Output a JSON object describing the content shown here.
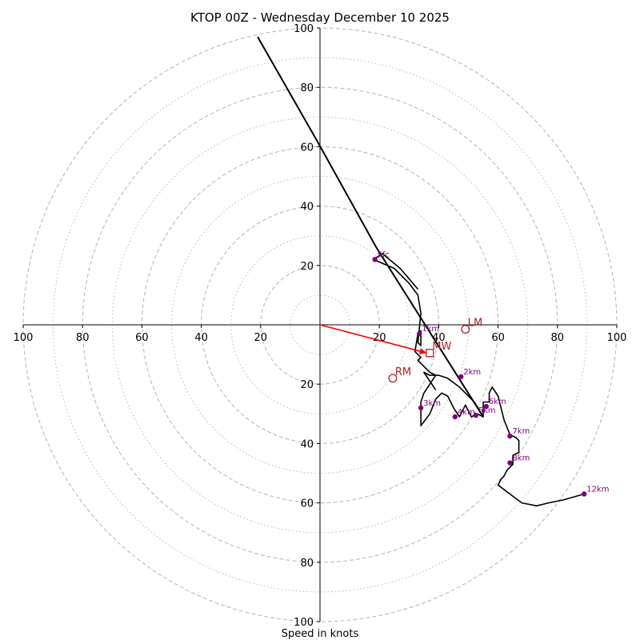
{
  "chart_data": {
    "type": "line",
    "title": "KTOP 00Z - Wednesday December 10 2025",
    "xlabel": "Speed in knots",
    "ylabel": "",
    "subtype": "hodograph",
    "xlim": [
      -100,
      100
    ],
    "ylim": [
      -100,
      100
    ],
    "major_rings": [
      10,
      20,
      30,
      40,
      50,
      60,
      70,
      80,
      90,
      100
    ],
    "ring_label_ticks": [
      20,
      40,
      60,
      80,
      100
    ],
    "x_tick_labels": [
      "100",
      "80",
      "60",
      "40",
      "20",
      "20",
      "40",
      "60",
      "80",
      "100"
    ],
    "y_tick_labels_top": [
      "20",
      "40",
      "60",
      "80",
      "100"
    ],
    "y_tick_labels_bottom": [
      "20",
      "40",
      "60",
      "80",
      "100"
    ],
    "colors": {
      "trace": "#000000",
      "height_markers": "#800080",
      "motion": "#b22222",
      "mean_wind_vector": "#ff0000",
      "rings": "#bbbbbb"
    },
    "series": [
      {
        "name": "hodograph",
        "points": [
          [
            33,
            12
          ],
          [
            27,
            19
          ],
          [
            21,
            24
          ],
          [
            18,
            22
          ],
          [
            25,
            19
          ],
          [
            30,
            14
          ],
          [
            33,
            10
          ],
          [
            34,
            4
          ],
          [
            33,
            -6
          ],
          [
            34,
            -7
          ],
          [
            34,
            -2
          ],
          [
            33,
            -3
          ],
          [
            32,
            -9
          ],
          [
            34,
            -11
          ],
          [
            33,
            -12
          ],
          [
            34,
            -13
          ],
          [
            37,
            -16
          ],
          [
            39,
            -17
          ],
          [
            37,
            -20
          ],
          [
            35,
            -23
          ],
          [
            34,
            -26
          ],
          [
            34,
            -28
          ],
          [
            34,
            -30
          ],
          [
            34,
            -34
          ],
          [
            37,
            -30
          ],
          [
            39,
            -25
          ],
          [
            41,
            -23
          ],
          [
            43,
            -24
          ],
          [
            45,
            -28
          ],
          [
            47,
            -31
          ],
          [
            49,
            -27
          ],
          [
            51,
            -31
          ],
          [
            53,
            -30
          ],
          [
            55,
            -31
          ],
          [
            55,
            -26
          ],
          [
            57,
            -26
          ],
          [
            57,
            -23
          ],
          [
            58,
            -21
          ],
          [
            60,
            -24
          ],
          [
            61,
            -28
          ],
          [
            62,
            -32
          ],
          [
            64,
            -37
          ],
          [
            66,
            -38
          ],
          [
            67,
            -39
          ],
          [
            67,
            -43
          ],
          [
            65,
            -44
          ],
          [
            65,
            -47
          ],
          [
            63,
            -49
          ],
          [
            62,
            -51
          ],
          [
            61,
            -52
          ],
          [
            60,
            -54
          ],
          [
            64,
            -57
          ],
          [
            68,
            -60
          ],
          [
            73,
            -61
          ],
          [
            77,
            -60
          ],
          [
            82,
            -59
          ],
          [
            89,
            -57
          ]
        ],
        "background_points": [
          [
            39,
            -22
          ],
          [
            35,
            -16
          ],
          [
            37,
            -17
          ],
          [
            40,
            -17
          ],
          [
            43,
            -18
          ],
          [
            47,
            -21
          ],
          [
            52,
            -26
          ],
          [
            55,
            -31
          ]
        ]
      },
      {
        "name": "storm-wind-line",
        "points": [
          [
            -21,
            97
          ],
          [
            -1,
            62
          ],
          [
            19,
            26
          ],
          [
            55,
            -31
          ]
        ]
      }
    ],
    "height_markers": [
      {
        "label": "Sfc",
        "u": 18.5,
        "v": 22
      },
      {
        "label": "1km",
        "u": 33.5,
        "v": -3
      },
      {
        "label": "2km",
        "u": 47.5,
        "v": -17.5
      },
      {
        "label": "3km",
        "u": 34,
        "v": -28
      },
      {
        "label": "4km",
        "u": 45.5,
        "v": -31
      },
      {
        "label": "5km",
        "u": 52.5,
        "v": -30.5
      },
      {
        "label": "6km",
        "u": 56,
        "v": -27.5
      },
      {
        "label": "7km",
        "u": 64,
        "v": -37.5
      },
      {
        "label": "8km",
        "u": 64,
        "v": -46.5
      },
      {
        "label": "12km",
        "u": 89,
        "v": -57
      }
    ],
    "storm_motions": [
      {
        "label": "LM",
        "u": 49,
        "v": -1.5,
        "marker": "circle"
      },
      {
        "label": "RM",
        "u": 24.5,
        "v": -18,
        "marker": "circle"
      },
      {
        "label": "MW",
        "u": 37,
        "v": -9.5,
        "marker": "square"
      }
    ],
    "mean_wind_vector": {
      "from": [
        0,
        0
      ],
      "to": [
        36,
        -9.5
      ]
    }
  }
}
